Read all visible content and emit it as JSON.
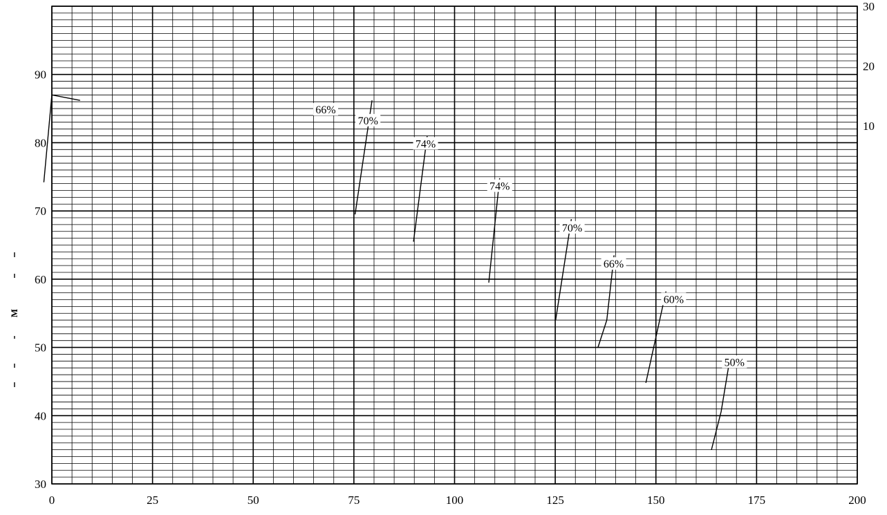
{
  "chart_data": {
    "type": "line",
    "title": "",
    "xlabel": "",
    "ylabel": "",
    "y2label": "",
    "xlim": [
      0,
      200
    ],
    "ylim": [
      30,
      100
    ],
    "y2lim": [
      0,
      30
    ],
    "grid": true,
    "x_ticks": [
      "0",
      "25",
      "50",
      "75",
      "100",
      "125",
      "150",
      "175",
      "200"
    ],
    "y_ticks": [
      "30",
      "40",
      "50",
      "60",
      "70",
      "80",
      "90"
    ],
    "y2_ticks": [
      "10",
      "20",
      "30"
    ],
    "series": [
      {
        "id": "head-curve",
        "points": [
          [
            -2,
            74.2
          ],
          [
            0,
            87
          ],
          [
            7,
            86.2
          ]
        ]
      },
      {
        "id": "eff-66-left",
        "label": "66%",
        "points": []
      },
      {
        "id": "eff-70-left",
        "label": "70%",
        "points": [
          [
            75.3,
            69.5
          ],
          [
            79.5,
            86.2
          ]
        ]
      },
      {
        "id": "eff-74-left",
        "label": "74%",
        "points": [
          [
            89.8,
            65.5
          ],
          [
            93.2,
            81
          ]
        ]
      },
      {
        "id": "eff-74-right",
        "label": "74%",
        "points": [
          [
            108.5,
            59.5
          ],
          [
            111.2,
            74.8
          ]
        ]
      },
      {
        "id": "eff-70-right",
        "label": "70%",
        "points": [
          [
            125.1,
            54
          ],
          [
            129,
            68.8
          ]
        ]
      },
      {
        "id": "eff-66-right",
        "label": "66%",
        "points": [
          [
            135.6,
            50
          ],
          [
            137.8,
            54
          ],
          [
            139.6,
            63.5
          ]
        ]
      },
      {
        "id": "eff-60",
        "label": "60%",
        "points": [
          [
            147.5,
            44.8
          ],
          [
            152.5,
            58.2
          ]
        ]
      },
      {
        "id": "eff-50",
        "label": "50%",
        "points": [
          [
            163.8,
            35
          ],
          [
            166.2,
            40.6
          ],
          [
            168.5,
            48.8
          ]
        ]
      }
    ],
    "labels": [
      {
        "text": "66%",
        "x": 68,
        "y": 84.8
      },
      {
        "text": "70%",
        "x": 78.5,
        "y": 83.2
      },
      {
        "text": "74%",
        "x": 92.8,
        "y": 79.8
      },
      {
        "text": "74%",
        "x": 111.2,
        "y": 73.6
      },
      {
        "text": "70%",
        "x": 129.2,
        "y": 67.5
      },
      {
        "text": "66%",
        "x": 139.5,
        "y": 62.2
      },
      {
        "text": "60%",
        "x": 154.4,
        "y": 57.0
      },
      {
        "text": "50%",
        "x": 169.5,
        "y": 47.8
      }
    ],
    "side_marks": [
      "M"
    ]
  }
}
